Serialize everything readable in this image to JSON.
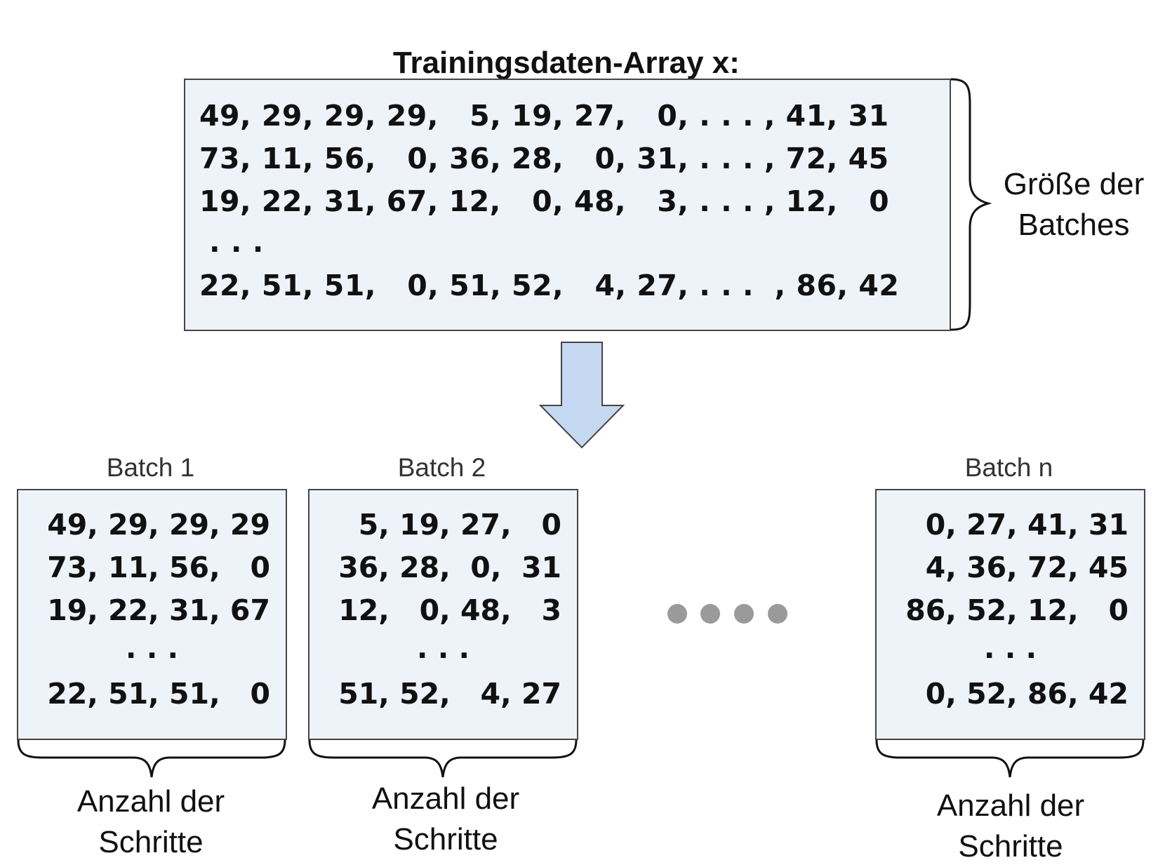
{
  "title": "Trainingsdaten-Array x:",
  "main_array": {
    "rows": [
      "49, 29, 29, 29,   5, 19, 27,   0, . . . , 41, 31",
      "73, 11, 56,   0, 36, 28,   0, 31, . . . , 72, 45",
      "19, 22, 31, 67, 12,   0, 48,   3, . . . , 12,   0",
      ". . .",
      "22, 51, 51,   0, 51, 52,   4, 27, . . .  , 86, 42"
    ],
    "brace_label": [
      "Größe der",
      "Batches"
    ]
  },
  "batches": [
    {
      "label": "Batch 1",
      "rows": [
        "49, 29, 29, 29",
        "73, 11, 56,   0",
        "19, 22, 31, 67",
        ". . .",
        "22, 51, 51,   0"
      ],
      "brace_label": [
        "Anzahl der",
        "Schritte"
      ]
    },
    {
      "label": "Batch 2",
      "rows": [
        "5, 19, 27,   0",
        "36, 28,  0,  31",
        "12,   0, 48,   3",
        ". . .",
        "51, 52,   4, 27"
      ],
      "brace_label": [
        "Anzahl der",
        "Schritte"
      ]
    },
    {
      "label": "Batch n",
      "rows": [
        "0, 27, 41, 31",
        "4, 36, 72, 45",
        "86, 52, 12,   0",
        ". . .",
        "0, 52, 86, 42"
      ],
      "brace_label": [
        "Anzahl der",
        "Schritte"
      ]
    }
  ],
  "colors": {
    "box_fill": "#eef3fa",
    "arrow_fill": "#c5d8f2",
    "dots": "#9a9a9a"
  }
}
